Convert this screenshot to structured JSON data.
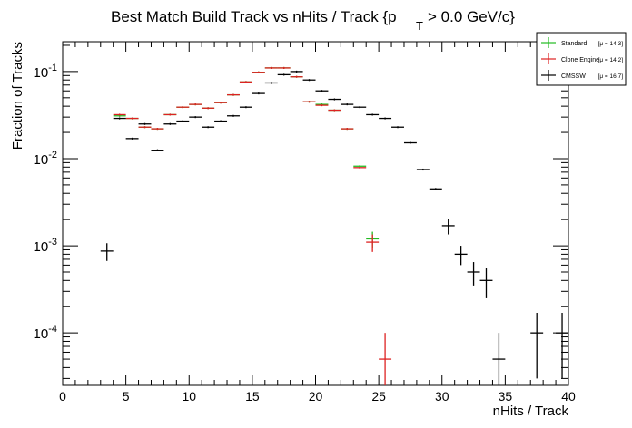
{
  "chart_data": {
    "type": "scatter",
    "title": {
      "text": "Best Match Build Track vs nHits / Track {p",
      "subscript": "T",
      "tail": "> 0.0 GeV/c}"
    },
    "xlabel": "nHits / Track",
    "ylabel": "Fraction of Tracks",
    "xlim": [
      0,
      40
    ],
    "ylim": [
      2.5e-05,
      0.22
    ],
    "yscale": "log",
    "x_ticks": [
      "0",
      "5",
      "10",
      "15",
      "20",
      "25",
      "30",
      "35",
      "40"
    ],
    "y_ticks": [
      {
        "base": "10",
        "exp": "-4",
        "value": 0.0001
      },
      {
        "base": "10",
        "exp": "-3",
        "value": 0.001
      },
      {
        "base": "10",
        "exp": "-2",
        "value": 0.01
      },
      {
        "base": "10",
        "exp": "-1",
        "value": 0.1
      }
    ],
    "grid": false,
    "legend_position": "top-right",
    "series": [
      {
        "name": "Standard",
        "mu": "[μ = 14.3]",
        "color": "#22bb22",
        "points": [
          {
            "x": 4.5,
            "y": 0.031
          },
          {
            "x": 5.5,
            "y": 0.029
          },
          {
            "x": 6.5,
            "y": 0.023
          },
          {
            "x": 7.5,
            "y": 0.022
          },
          {
            "x": 8.5,
            "y": 0.032
          },
          {
            "x": 9.5,
            "y": 0.039
          },
          {
            "x": 10.5,
            "y": 0.042
          },
          {
            "x": 11.5,
            "y": 0.038
          },
          {
            "x": 12.5,
            "y": 0.044
          },
          {
            "x": 13.5,
            "y": 0.054
          },
          {
            "x": 14.5,
            "y": 0.076
          },
          {
            "x": 15.5,
            "y": 0.098
          },
          {
            "x": 16.5,
            "y": 0.11
          },
          {
            "x": 17.5,
            "y": 0.11
          },
          {
            "x": 18.5,
            "y": 0.087
          },
          {
            "x": 19.5,
            "y": 0.045
          },
          {
            "x": 20.5,
            "y": 0.042
          },
          {
            "x": 21.5,
            "y": 0.036
          },
          {
            "x": 22.5,
            "y": 0.022
          },
          {
            "x": 23.5,
            "y": 0.0082
          },
          {
            "x": 24.5,
            "y": 0.0012,
            "err": 0.00025
          }
        ]
      },
      {
        "name": "Clone Engine",
        "mu": "[μ = 14.2]",
        "color": "#dd2222",
        "points": [
          {
            "x": 4.5,
            "y": 0.032
          },
          {
            "x": 5.5,
            "y": 0.029
          },
          {
            "x": 6.5,
            "y": 0.023
          },
          {
            "x": 7.5,
            "y": 0.022
          },
          {
            "x": 8.5,
            "y": 0.032
          },
          {
            "x": 9.5,
            "y": 0.039
          },
          {
            "x": 10.5,
            "y": 0.042
          },
          {
            "x": 11.5,
            "y": 0.038
          },
          {
            "x": 12.5,
            "y": 0.044
          },
          {
            "x": 13.5,
            "y": 0.054
          },
          {
            "x": 14.5,
            "y": 0.076
          },
          {
            "x": 15.5,
            "y": 0.098
          },
          {
            "x": 16.5,
            "y": 0.11
          },
          {
            "x": 17.5,
            "y": 0.11
          },
          {
            "x": 18.5,
            "y": 0.087
          },
          {
            "x": 19.5,
            "y": 0.045
          },
          {
            "x": 20.5,
            "y": 0.041
          },
          {
            "x": 21.5,
            "y": 0.036
          },
          {
            "x": 22.5,
            "y": 0.022
          },
          {
            "x": 23.5,
            "y": 0.0079
          },
          {
            "x": 24.5,
            "y": 0.0011,
            "err": 0.00025
          },
          {
            "x": 25.5,
            "y": 5e-05,
            "err": 5e-05
          }
        ]
      },
      {
        "name": "CMSSW",
        "mu": "[μ = 16.7]",
        "color": "#000000",
        "points": [
          {
            "x": 3.5,
            "y": 0.00087,
            "err": 0.0002
          },
          {
            "x": 4.5,
            "y": 0.029
          },
          {
            "x": 5.5,
            "y": 0.017
          },
          {
            "x": 6.5,
            "y": 0.025
          },
          {
            "x": 7.5,
            "y": 0.0125
          },
          {
            "x": 8.5,
            "y": 0.025
          },
          {
            "x": 9.5,
            "y": 0.027
          },
          {
            "x": 10.5,
            "y": 0.03
          },
          {
            "x": 11.5,
            "y": 0.023
          },
          {
            "x": 12.5,
            "y": 0.027
          },
          {
            "x": 13.5,
            "y": 0.031
          },
          {
            "x": 14.5,
            "y": 0.039
          },
          {
            "x": 15.5,
            "y": 0.056
          },
          {
            "x": 16.5,
            "y": 0.074
          },
          {
            "x": 17.5,
            "y": 0.092
          },
          {
            "x": 18.5,
            "y": 0.1
          },
          {
            "x": 19.5,
            "y": 0.08
          },
          {
            "x": 20.5,
            "y": 0.06
          },
          {
            "x": 21.5,
            "y": 0.048
          },
          {
            "x": 22.5,
            "y": 0.042
          },
          {
            "x": 23.5,
            "y": 0.039
          },
          {
            "x": 24.5,
            "y": 0.032
          },
          {
            "x": 25.5,
            "y": 0.029
          },
          {
            "x": 26.5,
            "y": 0.023
          },
          {
            "x": 27.5,
            "y": 0.0152
          },
          {
            "x": 28.5,
            "y": 0.0075
          },
          {
            "x": 29.5,
            "y": 0.0045
          },
          {
            "x": 30.5,
            "y": 0.0017,
            "err": 0.00035
          },
          {
            "x": 31.5,
            "y": 0.0008,
            "err": 0.0002
          },
          {
            "x": 32.5,
            "y": 0.0005,
            "err": 0.00015
          },
          {
            "x": 33.5,
            "y": 0.0004,
            "err": 0.00015
          },
          {
            "x": 34.5,
            "y": 5e-05,
            "err": 5e-05
          },
          {
            "x": 37.5,
            "y": 0.0001,
            "err": 7e-05
          },
          {
            "x": 39.5,
            "y": 0.0001,
            "err": 7e-05
          }
        ]
      }
    ]
  }
}
